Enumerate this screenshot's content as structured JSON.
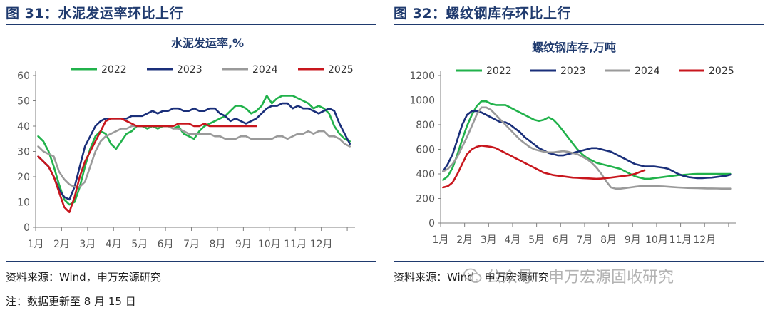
{
  "figures": [
    {
      "figure_title": "图 31：水泥发运率环比上行",
      "source": "资料来源：Wind，申万宏源研究"
    },
    {
      "figure_title": "图 32：螺纹钢库存环比上行",
      "source": "资料来源：Wind，申万宏源研究"
    }
  ],
  "note": "注：数据更新至 8 月 15 日",
  "watermark": "公众号 · 申万宏源固收研究",
  "colors": {
    "2022": "#21b24b",
    "2023": "#1a2f7a",
    "2024": "#9a9a9a",
    "2025": "#c8161d",
    "title": "#1f3a6e"
  },
  "chart_data": [
    {
      "type": "line",
      "title": "水泥发运率,%",
      "xlabel": "",
      "ylabel": "",
      "x_range": [
        0,
        12.3
      ],
      "categories": [
        "1月",
        "2月",
        "3月",
        "4月",
        "5月",
        "6月",
        "7月",
        "8月",
        "9月",
        "10月",
        "11月",
        "12月"
      ],
      "ylim": [
        0,
        60
      ],
      "yticks": [
        0,
        10,
        20,
        30,
        40,
        50,
        60
      ],
      "legend_position": "top",
      "series": [
        {
          "name": "2022",
          "x": [
            0.1,
            0.3,
            0.5,
            0.7,
            0.9,
            1.1,
            1.3,
            1.5,
            1.7,
            1.9,
            2.1,
            2.3,
            2.5,
            2.7,
            2.9,
            3.1,
            3.3,
            3.5,
            3.7,
            3.9,
            4.1,
            4.3,
            4.5,
            4.7,
            4.9,
            5.1,
            5.3,
            5.5,
            5.7,
            5.9,
            6.1,
            6.3,
            6.5,
            6.7,
            6.9,
            7.1,
            7.3,
            7.5,
            7.7,
            7.9,
            8.1,
            8.3,
            8.5,
            8.7,
            8.9,
            9.1,
            9.3,
            9.5,
            9.7,
            9.9,
            10.1,
            10.3,
            10.5,
            10.7,
            10.9,
            11.1,
            11.3,
            11.5,
            11.7,
            11.9,
            12.1
          ],
          "y": [
            36,
            34,
            30,
            24,
            17,
            11,
            9,
            10,
            16,
            24,
            31,
            36,
            38,
            37,
            33,
            31,
            34,
            37,
            38,
            40,
            40,
            39,
            40,
            39,
            40,
            40,
            39,
            40,
            37,
            36,
            35,
            38,
            40,
            41,
            42,
            43,
            44,
            46,
            48,
            48,
            47,
            45,
            46,
            48,
            52,
            49,
            51,
            52,
            52,
            52,
            51,
            50,
            49,
            47,
            48,
            47,
            45,
            40,
            37,
            35,
            34
          ]
        },
        {
          "name": "2023",
          "x": [
            0.1,
            0.3,
            0.5,
            0.7,
            0.9,
            1.1,
            1.3,
            1.5,
            1.7,
            1.9,
            2.1,
            2.3,
            2.5,
            2.7,
            2.9,
            3.1,
            3.3,
            3.5,
            3.7,
            3.9,
            4.1,
            4.3,
            4.5,
            4.7,
            4.9,
            5.1,
            5.3,
            5.5,
            5.7,
            5.9,
            6.1,
            6.3,
            6.5,
            6.7,
            6.9,
            7.1,
            7.3,
            7.5,
            7.7,
            7.9,
            8.1,
            8.3,
            8.5,
            8.7,
            8.9,
            9.1,
            9.3,
            9.5,
            9.7,
            9.9,
            10.1,
            10.3,
            10.5,
            10.7,
            10.9,
            11.1,
            11.3,
            11.5,
            11.7,
            11.9,
            12.1
          ],
          "y": [
            28,
            26,
            24,
            20,
            15,
            12,
            11,
            16,
            24,
            32,
            36,
            40,
            42,
            43,
            43,
            43,
            43,
            43,
            44,
            44,
            44,
            45,
            46,
            45,
            46,
            46,
            47,
            47,
            46,
            46,
            47,
            46,
            46,
            47,
            47,
            45,
            44,
            42,
            43,
            42,
            41,
            42,
            43,
            45,
            47,
            48,
            48,
            49,
            49,
            47,
            48,
            47,
            47,
            46,
            45,
            46,
            47,
            46,
            41,
            37,
            33
          ]
        },
        {
          "name": "2024",
          "x": [
            0.1,
            0.3,
            0.5,
            0.7,
            0.9,
            1.1,
            1.3,
            1.5,
            1.7,
            1.9,
            2.1,
            2.3,
            2.5,
            2.7,
            2.9,
            3.1,
            3.3,
            3.5,
            3.7,
            3.9,
            4.1,
            4.3,
            4.5,
            4.7,
            4.9,
            5.1,
            5.3,
            5.5,
            5.7,
            5.9,
            6.1,
            6.3,
            6.5,
            6.7,
            6.9,
            7.1,
            7.3,
            7.5,
            7.7,
            7.9,
            8.1,
            8.3,
            8.5,
            8.7,
            8.9,
            9.1,
            9.3,
            9.5,
            9.7,
            9.9,
            10.1,
            10.3,
            10.5,
            10.7,
            10.9,
            11.1,
            11.3,
            11.5,
            11.7,
            11.9,
            12.1
          ],
          "y": [
            32,
            30,
            29,
            28,
            22,
            19,
            17,
            16,
            16,
            18,
            24,
            30,
            34,
            36,
            37,
            38,
            39,
            39,
            40,
            40,
            40,
            40,
            40,
            40,
            40,
            40,
            39,
            39,
            38,
            37,
            37,
            37,
            37,
            37,
            36,
            36,
            35,
            35,
            35,
            36,
            36,
            35,
            35,
            35,
            35,
            35,
            36,
            36,
            35,
            36,
            37,
            37,
            38,
            37,
            38,
            38,
            36,
            36,
            35,
            33,
            32
          ]
        },
        {
          "name": "2025",
          "x": [
            0.1,
            0.3,
            0.5,
            0.7,
            0.9,
            1.1,
            1.3,
            1.5,
            1.7,
            1.9,
            2.1,
            2.3,
            2.5,
            2.7,
            2.9,
            3.1,
            3.3,
            3.5,
            3.7,
            3.9,
            4.1,
            4.3,
            4.5,
            4.7,
            4.9,
            5.1,
            5.3,
            5.5,
            5.7,
            5.9,
            6.1,
            6.3,
            6.5,
            6.7,
            6.9,
            7.1,
            7.3,
            7.5,
            7.7,
            7.9,
            8.1,
            8.3,
            8.5
          ],
          "y": [
            28,
            26,
            24,
            20,
            14,
            8,
            6,
            12,
            20,
            26,
            30,
            34,
            38,
            42,
            43,
            43,
            43,
            42,
            41,
            40,
            40,
            40,
            40,
            40,
            40,
            40,
            40,
            41,
            41,
            41,
            40,
            40,
            41,
            40,
            40,
            40,
            40,
            40,
            40,
            40,
            40,
            40,
            40
          ]
        }
      ]
    },
    {
      "type": "line",
      "title": "螺纹钢库存,万吨",
      "xlabel": "",
      "ylabel": "",
      "x_range": [
        0,
        12.3
      ],
      "categories": [
        "1月",
        "2月",
        "3月",
        "4月",
        "5月",
        "6月",
        "7月",
        "8月",
        "9月",
        "10月",
        "11月",
        "12月"
      ],
      "ylim": [
        0,
        1200
      ],
      "yticks": [
        0,
        200,
        400,
        600,
        800,
        1000,
        1200
      ],
      "legend_position": "top",
      "series": [
        {
          "name": "2022",
          "x": [
            0.1,
            0.3,
            0.5,
            0.7,
            0.9,
            1.1,
            1.3,
            1.5,
            1.7,
            1.9,
            2.1,
            2.3,
            2.5,
            2.7,
            2.9,
            3.1,
            3.3,
            3.5,
            3.7,
            3.9,
            4.1,
            4.3,
            4.5,
            4.7,
            4.9,
            5.1,
            5.3,
            5.5,
            5.7,
            5.9,
            6.1,
            6.3,
            6.5,
            6.7,
            6.9,
            7.1,
            7.3,
            7.5,
            7.7,
            7.9,
            8.1,
            8.3,
            8.5,
            8.7,
            8.9,
            9.1,
            9.3,
            9.5,
            9.7,
            9.9,
            10.1,
            10.3,
            10.5,
            10.7,
            10.9,
            11.1,
            11.3,
            11.5,
            11.7,
            11.9,
            12.1
          ],
          "y": [
            350,
            380,
            450,
            560,
            680,
            790,
            880,
            950,
            990,
            990,
            970,
            960,
            960,
            960,
            940,
            920,
            900,
            880,
            860,
            840,
            830,
            840,
            860,
            840,
            800,
            750,
            700,
            650,
            600,
            560,
            530,
            510,
            490,
            480,
            470,
            460,
            450,
            440,
            420,
            400,
            380,
            370,
            360,
            360,
            365,
            370,
            375,
            380,
            385,
            390,
            392,
            395,
            398,
            400,
            400,
            400,
            400,
            400,
            400,
            400,
            400
          ]
        },
        {
          "name": "2023",
          "x": [
            0.1,
            0.3,
            0.5,
            0.7,
            0.9,
            1.1,
            1.3,
            1.5,
            1.7,
            1.9,
            2.1,
            2.3,
            2.5,
            2.7,
            2.9,
            3.1,
            3.3,
            3.5,
            3.7,
            3.9,
            4.1,
            4.3,
            4.5,
            4.7,
            4.9,
            5.1,
            5.3,
            5.5,
            5.7,
            5.9,
            6.1,
            6.3,
            6.5,
            6.7,
            6.9,
            7.1,
            7.3,
            7.5,
            7.7,
            7.9,
            8.1,
            8.3,
            8.5,
            8.7,
            8.9,
            9.1,
            9.3,
            9.5,
            9.7,
            9.9,
            10.1,
            10.3,
            10.5,
            10.7,
            10.9,
            11.1,
            11.3,
            11.5,
            11.7,
            11.9,
            12.1
          ],
          "y": [
            420,
            480,
            560,
            680,
            800,
            880,
            910,
            910,
            900,
            880,
            860,
            840,
            820,
            820,
            800,
            770,
            740,
            700,
            670,
            640,
            610,
            590,
            570,
            560,
            550,
            550,
            560,
            570,
            580,
            590,
            600,
            610,
            610,
            600,
            590,
            580,
            560,
            540,
            520,
            500,
            480,
            470,
            460,
            460,
            460,
            455,
            450,
            440,
            420,
            400,
            385,
            375,
            370,
            365,
            365,
            368,
            370,
            375,
            380,
            385,
            395
          ]
        },
        {
          "name": "2024",
          "x": [
            0.1,
            0.3,
            0.5,
            0.7,
            0.9,
            1.1,
            1.3,
            1.5,
            1.7,
            1.9,
            2.1,
            2.3,
            2.5,
            2.7,
            2.9,
            3.1,
            3.3,
            3.5,
            3.7,
            3.9,
            4.1,
            4.3,
            4.5,
            4.7,
            4.9,
            5.1,
            5.3,
            5.5,
            5.7,
            5.9,
            6.1,
            6.3,
            6.5,
            6.7,
            6.9,
            7.1,
            7.3,
            7.5,
            7.7,
            7.9,
            8.1,
            8.3,
            8.5,
            8.7,
            8.9,
            9.1,
            9.3,
            9.5,
            9.7,
            9.9,
            10.1,
            10.3,
            10.5,
            10.7,
            10.9,
            11.1,
            11.3,
            11.5,
            11.7,
            11.9,
            12.1
          ],
          "y": [
            420,
            440,
            480,
            540,
            620,
            700,
            790,
            880,
            940,
            940,
            920,
            880,
            840,
            800,
            760,
            720,
            680,
            650,
            620,
            600,
            590,
            580,
            575,
            575,
            580,
            585,
            580,
            570,
            560,
            540,
            520,
            490,
            450,
            400,
            340,
            290,
            280,
            280,
            285,
            290,
            295,
            300,
            300,
            300,
            300,
            300,
            298,
            295,
            292,
            290,
            288,
            286,
            285,
            284,
            283,
            282,
            282,
            281,
            280,
            280,
            280
          ]
        },
        {
          "name": "2025",
          "x": [
            0.1,
            0.3,
            0.5,
            0.7,
            0.9,
            1.1,
            1.3,
            1.5,
            1.7,
            1.9,
            2.1,
            2.3,
            2.5,
            2.7,
            2.9,
            3.1,
            3.3,
            3.5,
            3.7,
            3.9,
            4.1,
            4.3,
            4.5,
            4.7,
            4.9,
            5.1,
            5.3,
            5.5,
            5.7,
            5.9,
            6.1,
            6.3,
            6.5,
            6.7,
            6.9,
            7.1,
            7.3,
            7.5,
            7.7,
            7.9,
            8.1,
            8.3,
            8.5
          ],
          "y": [
            290,
            300,
            330,
            400,
            480,
            560,
            600,
            620,
            630,
            625,
            620,
            610,
            590,
            570,
            550,
            530,
            510,
            490,
            470,
            450,
            430,
            410,
            400,
            390,
            385,
            380,
            375,
            370,
            368,
            366,
            364,
            362,
            360,
            362,
            365,
            370,
            375,
            380,
            385,
            390,
            400,
            415,
            430
          ]
        }
      ]
    }
  ]
}
